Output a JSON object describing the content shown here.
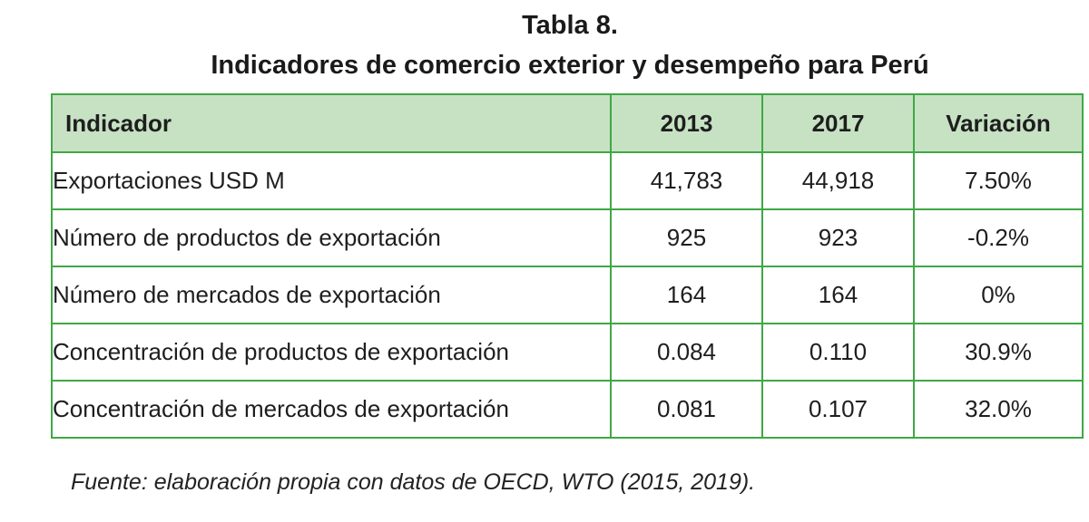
{
  "title": {
    "line1": "Tabla 8.",
    "line2": "Indicadores de comercio exterior y desempeño para Perú"
  },
  "table": {
    "headers": [
      "Indicador",
      "2013",
      "2017",
      "Variación"
    ],
    "rows": [
      [
        "Exportaciones USD M",
        "41,783",
        "44,918",
        "7.50%"
      ],
      [
        "Número de productos de exportación",
        "925",
        "923",
        "-0.2%"
      ],
      [
        "Número de mercados de exportación",
        "164",
        "164",
        "0%"
      ],
      [
        "Concentración de productos de exportación",
        "0.084",
        "0.110",
        "30.9%"
      ],
      [
        "Concentración de mercados de exportación",
        "0.081",
        "0.107",
        "32.0%"
      ]
    ]
  },
  "source": "Fuente: elaboración propia con datos de OECD, WTO (2015, 2019).",
  "colors": {
    "border": "#3fa845",
    "header_background": "#c6e2c3"
  }
}
